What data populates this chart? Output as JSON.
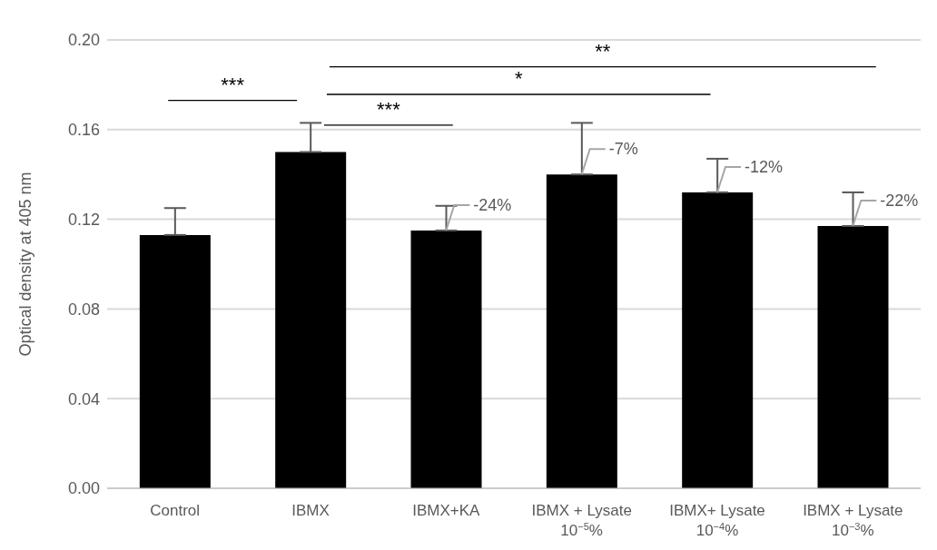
{
  "chart_data": {
    "type": "bar",
    "ylabel": "Optical density at 405 nm",
    "categories": [
      "Control",
      "IBMX",
      "IBMX+KA",
      "IBMX + Lysate 10$^{−5}$%",
      "IBMX+ Lysate 10$^{−4}$%",
      "IBMX + Lysate 10$^{−3}$%"
    ],
    "values": [
      0.113,
      0.15,
      0.115,
      0.14,
      0.132,
      0.117
    ],
    "color": "#000000",
    "errors": [
      [
        0.113,
        0.125
      ],
      [
        0.15,
        0.163
      ],
      [
        0.115,
        0.126
      ],
      [
        0.14,
        0.163
      ],
      [
        0.132,
        0.147
      ],
      [
        0.117,
        0.132
      ]
    ],
    "ylim": [
      0,
      0.2
    ],
    "yticks": [
      {
        "value": 0,
        "label": "0.00"
      },
      {
        "value": 0.04,
        "label": "0.04"
      },
      {
        "value": 0.08,
        "label": "0.08"
      },
      {
        "value": 0.12,
        "label": "0.12"
      },
      {
        "value": 0.16,
        "label": "0.16"
      },
      {
        "value": 0.2,
        "label": "0.20"
      }
    ],
    "grid": "y",
    "annotations": [
      "***",
      "***",
      "*",
      "**",
      {
        "text": "-24%",
        "x": "IBMX+KA",
        "y": 0.115
      },
      {
        "text": "-7%",
        "x": "IBMX + Lysate 10$^{−5}$%",
        "y": 0.14
      },
      {
        "text": "-12%",
        "x": "IBMX+ Lysate 10$^{−4}$%",
        "y": 0.132
      },
      {
        "text": "-22%",
        "x": "IBMX + Lysate 10$^{−3}$%",
        "y": 0.117
      }
    ]
  }
}
